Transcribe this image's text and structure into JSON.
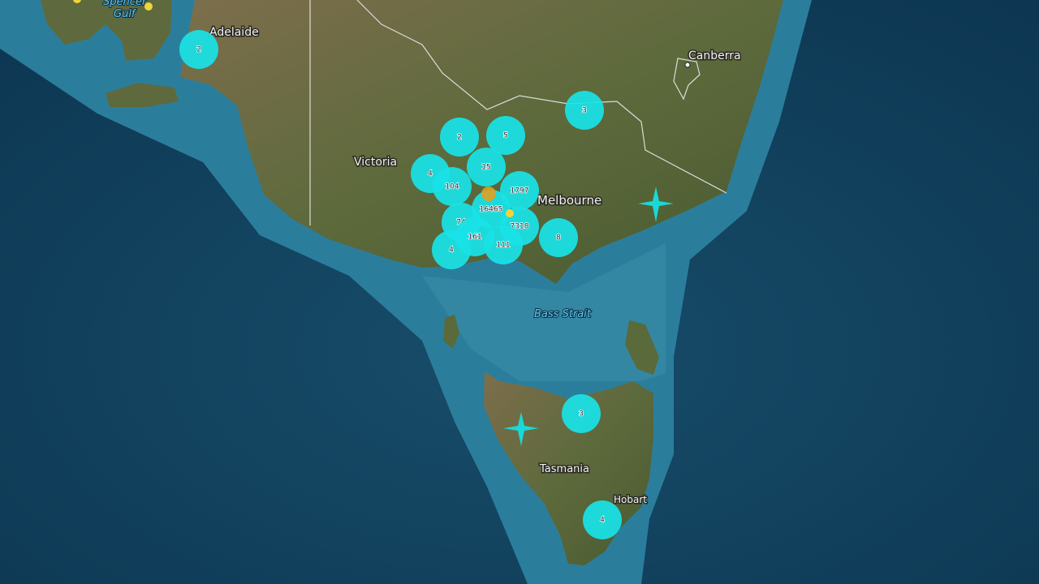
{
  "map": {
    "places": {
      "adelaide": "Adelaide",
      "canberra": "Canberra",
      "melbourne": "Melbourne",
      "victoria": "Victoria",
      "tasmania": "Tasmania",
      "hobart": "Hobart"
    },
    "water_labels": {
      "spencer_gulf_1": "Spencer",
      "spencer_gulf_2": "Gulf",
      "bass_strait": "Bass Strait"
    },
    "clusters": [
      {
        "count": "2"
      },
      {
        "count": "3"
      },
      {
        "count": "2"
      },
      {
        "count": "5"
      },
      {
        "count": "15"
      },
      {
        "count": "4"
      },
      {
        "count": "104"
      },
      {
        "count": "1797"
      },
      {
        "count": "16465"
      },
      {
        "count": "7318"
      },
      {
        "count": "74"
      },
      {
        "count": "161"
      },
      {
        "count": "4"
      },
      {
        "count": "111"
      },
      {
        "count": "8"
      },
      {
        "count": "3"
      },
      {
        "count": "4"
      }
    ],
    "colors": {
      "cluster": "#19e3e8",
      "event_marker_yellow": "#f0d43a",
      "event_marker_orange": "#e0a020",
      "epicentre_star": "#1ad8d8",
      "deep_ocean": "#0f3b55",
      "shelf": "#2a7d9a",
      "land": "#6b6a48"
    },
    "icons": [
      "cluster-marker",
      "earthquake-dot",
      "epicentre-star-icon",
      "city-dot-icon"
    ]
  }
}
